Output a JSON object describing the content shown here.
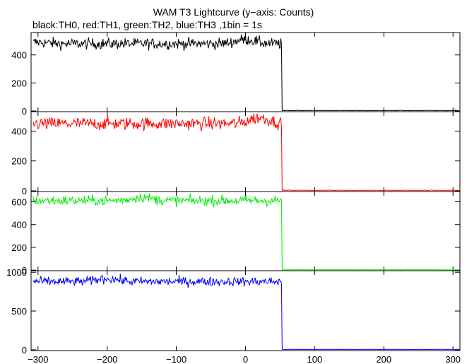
{
  "chart_data": {
    "type": "line",
    "title": "WAM T3 Lightcurve (y−axis: Counts)",
    "subtitle": "black:TH0, red:TH1, green:TH2, blue:TH3 ,1bin = 1s",
    "xlim": [
      -310,
      310
    ],
    "xticks": [
      -300,
      -200,
      -100,
      0,
      100,
      200,
      300
    ],
    "xtick_labels": [
      "−300",
      "−200",
      "−100",
      "0",
      "100",
      "200",
      "300"
    ],
    "step_time": 53,
    "grid": false,
    "panels": [
      {
        "series": "TH0",
        "color": "#000000",
        "ylim": [
          -5,
          560
        ],
        "yticks": [
          0,
          200,
          400
        ],
        "ytick_labels": [
          "0",
          "200",
          "400"
        ],
        "before_mean": 480,
        "before_noise": 20,
        "after_level": 2,
        "bumps": [
          {
            "x": 0,
            "dy": 30
          },
          {
            "x": -300,
            "dy": 10
          }
        ]
      },
      {
        "series": "TH1",
        "color": "#ff0000",
        "ylim": [
          -5,
          530
        ],
        "yticks": [
          0,
          200,
          400
        ],
        "ytick_labels": [
          "0",
          "200",
          "400"
        ],
        "before_mean": 450,
        "before_noise": 22,
        "after_level": 2,
        "bumps": [
          {
            "x": 20,
            "dy": 40
          }
        ]
      },
      {
        "series": "TH2",
        "color": "#00ee00",
        "ylim": [
          -5,
          690
        ],
        "yticks": [
          0,
          200,
          400,
          600
        ],
        "ytick_labels": [
          "0",
          "200",
          "400",
          "600"
        ],
        "before_mean": 610,
        "before_noise": 22,
        "after_level": 2,
        "bumps": [
          {
            "x": -150,
            "dy": 30
          }
        ]
      },
      {
        "series": "TH3",
        "color": "#0000ff",
        "ylim": [
          -10,
          1020
        ],
        "yticks": [
          0,
          500,
          1000
        ],
        "ytick_labels": [
          "0",
          "500",
          "1000"
        ],
        "before_mean": 880,
        "before_noise": 30,
        "after_level": 4,
        "bumps": [
          {
            "x": -200,
            "dy": 40
          }
        ]
      }
    ]
  }
}
